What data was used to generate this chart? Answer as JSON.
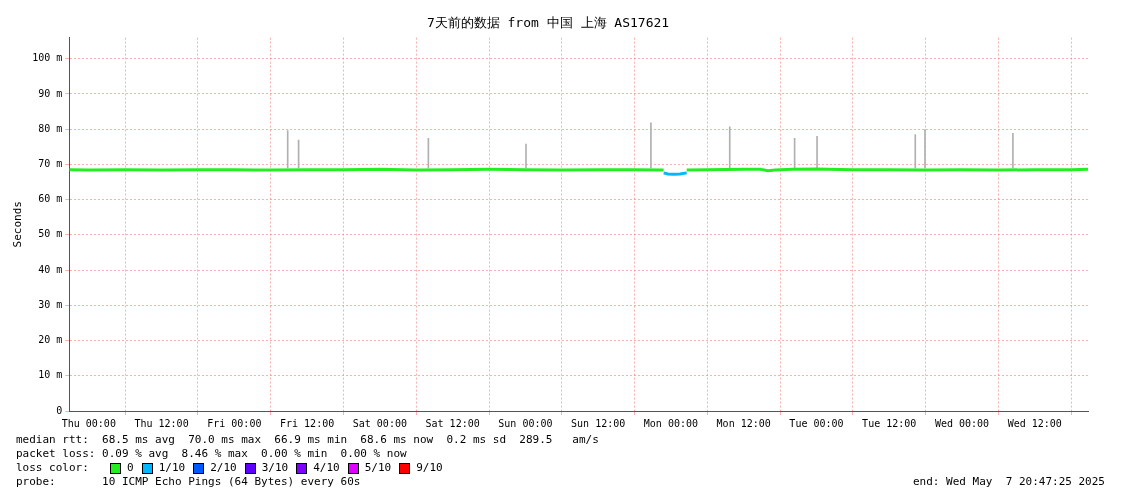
{
  "chart_data": {
    "type": "line",
    "title": "7天前的数据 from 中国 上海 AS17621",
    "ylabel": "Seconds",
    "legend_title": "loss color:",
    "xlim": [
      "2025-04-30T20:47",
      "2025-05-07T20:47"
    ],
    "xticks": [
      {
        "value": "2025-05-01T00:00",
        "label": "Thu 00:00"
      },
      {
        "value": "2025-05-01T12:00",
        "label": "Thu 12:00"
      },
      {
        "value": "2025-05-02T00:00",
        "label": "Fri 00:00"
      },
      {
        "value": "2025-05-02T12:00",
        "label": "Fri 12:00"
      },
      {
        "value": "2025-05-03T00:00",
        "label": "Sat 00:00"
      },
      {
        "value": "2025-05-03T12:00",
        "label": "Sat 12:00"
      },
      {
        "value": "2025-05-04T00:00",
        "label": "Sun 00:00"
      },
      {
        "value": "2025-05-04T12:00",
        "label": "Sun 12:00"
      },
      {
        "value": "2025-05-05T00:00",
        "label": "Mon 00:00"
      },
      {
        "value": "2025-05-05T12:00",
        "label": "Mon 12:00"
      },
      {
        "value": "2025-05-06T00:00",
        "label": "Tue 00:00"
      },
      {
        "value": "2025-05-06T12:00",
        "label": "Tue 12:00"
      },
      {
        "value": "2025-05-07T00:00",
        "label": "Wed 00:00"
      },
      {
        "value": "2025-05-07T12:00",
        "label": "Wed 12:00"
      }
    ],
    "ylim": [
      0,
      106
    ],
    "yticks": [
      0,
      {
        "value": 10,
        "label": "10 m"
      },
      {
        "value": 20,
        "label": "20 m"
      },
      {
        "value": 30,
        "label": "30 m"
      },
      {
        "value": 40,
        "label": "40 m"
      },
      {
        "value": 50,
        "label": "50 m"
      },
      {
        "value": 60,
        "label": "60 m"
      },
      {
        "value": 70,
        "label": "70 m"
      },
      {
        "value": 80,
        "label": "80 m"
      },
      {
        "value": 90,
        "label": "90 m"
      },
      {
        "value": 100,
        "label": "100 m"
      }
    ],
    "grid": true,
    "legend": "bottom",
    "marker": "none",
    "line_style": "solid",
    "series": [
      {
        "name": "0",
        "color": "#22ee22",
        "x": [
          "2025-04-30T20:47",
          "2025-05-01T00:00",
          "2025-05-01T06:00",
          "2025-05-01T12:00",
          "2025-05-01T18:00",
          "2025-05-02T00:00",
          "2025-05-02T06:00",
          "2025-05-02T12:00",
          "2025-05-02T18:00",
          "2025-05-03T00:00",
          "2025-05-03T06:00",
          "2025-05-03T12:00",
          "2025-05-03T18:00",
          "2025-05-04T00:00",
          "2025-05-04T06:00",
          "2025-05-04T12:00",
          "2025-05-04T18:00",
          "2025-05-04T22:48",
          "2025-05-05T00:30",
          "2025-05-05T02:36",
          "2025-05-05T06:00",
          "2025-05-05T12:00",
          "2025-05-05T14:50",
          "2025-05-05T16:00",
          "2025-05-05T17:10",
          "2025-05-05T20:00",
          "2025-05-06T00:00",
          "2025-05-06T06:00",
          "2025-05-06T12:00",
          "2025-05-06T18:00",
          "2025-05-07T00:00",
          "2025-05-07T06:00",
          "2025-05-07T12:00",
          "2025-05-07T18:00",
          "2025-05-07T20:47"
        ],
        "values": [
          68.5,
          68.4,
          68.5,
          68.4,
          68.5,
          68.5,
          68.4,
          68.5,
          68.5,
          68.6,
          68.4,
          68.5,
          68.6,
          68.5,
          68.4,
          68.5,
          68.5,
          68.4,
          null,
          68.4,
          68.5,
          68.6,
          68.6,
          68.2,
          68.4,
          68.6,
          68.7,
          68.5,
          68.5,
          68.4,
          68.5,
          68.4,
          68.5,
          68.5,
          68.6
        ]
      },
      {
        "name": "1/10",
        "color": "#00b8ff",
        "x": [
          "2025-05-04T22:48",
          "2025-05-04T23:30",
          "2025-05-05T00:30",
          "2025-05-05T01:30",
          "2025-05-05T02:36"
        ],
        "values": [
          67.6,
          67.3,
          67.2,
          67.3,
          67.6
        ]
      },
      {
        "name": "2/10",
        "color": "#0059ff"
      },
      {
        "name": "3/10",
        "color": "#5e00ff"
      },
      {
        "name": "4/10",
        "color": "#7e00ff"
      },
      {
        "name": "5/10",
        "color": "#dd00ff"
      },
      {
        "name": "9/10",
        "color": "#ff0000"
      },
      {
        "type": "bar",
        "color": "#b0b0b0",
        "x": [
          "2025-05-02T08:48",
          "2025-05-02T10:36",
          "2025-05-03T08:00",
          "2025-05-04T00:06",
          "2025-05-04T20:42",
          "2025-05-05T09:42",
          "2025-05-05T20:24",
          "2025-05-06T00:06",
          "2025-05-06T16:18",
          "2025-05-06T17:54",
          "2025-05-07T08:24"
        ],
        "base": [
          69,
          69,
          69,
          69,
          69,
          69,
          69,
          69,
          69,
          69,
          69
        ],
        "values": [
          10.6,
          7.9,
          8.4,
          6.8,
          12.8,
          11.7,
          8.4,
          9,
          9.5,
          10.9,
          9.8
        ]
      }
    ],
    "annotations": [
      "median rtt:  68.5 ms avg  70.0 ms max  66.9 ms min  68.6 ms now  0.2 ms sd  289.5   am/s",
      "packet loss: 0.09 % avg  8.46 % max  0.00 % min  0.00 % now",
      "probe:       10 ICMP Echo Pings (64 Bytes) every 60s",
      "end: Wed May  7 20:47:25 2025"
    ]
  }
}
